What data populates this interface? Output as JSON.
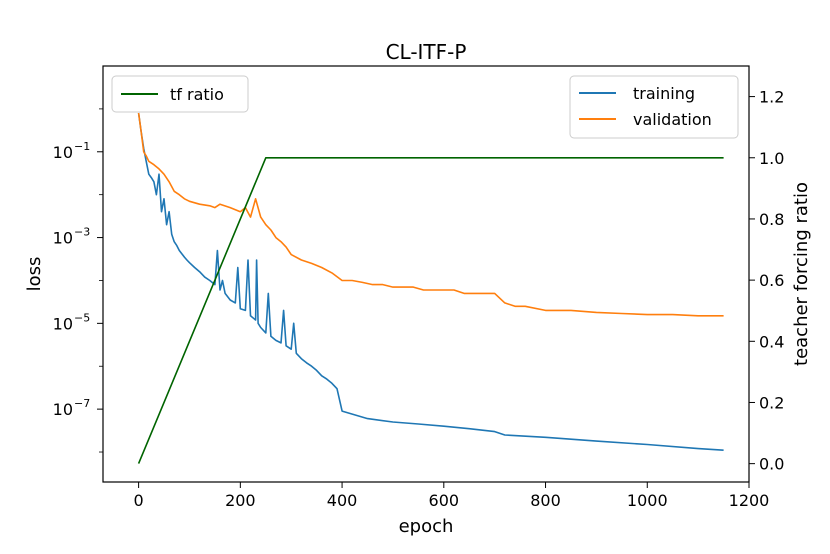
{
  "chart_data": {
    "type": "line",
    "title": "CL-ITF-P",
    "xlabel": "epoch",
    "ylabel": "loss",
    "ylabel_right": "teacher forcing ratio",
    "xlim": [
      -70,
      1200
    ],
    "xticks": [
      0,
      200,
      400,
      600,
      800,
      1000,
      1200
    ],
    "ylim_left": [
      2e-09,
      10
    ],
    "yscale_left": "log",
    "yticks_left": [
      {
        "value": 0.1,
        "base": "10",
        "exp": "−1"
      },
      {
        "value": 0.001,
        "base": "10",
        "exp": "−3"
      },
      {
        "value": 1e-05,
        "base": "10",
        "exp": "−5"
      },
      {
        "value": 1e-07,
        "base": "10",
        "exp": "−7"
      }
    ],
    "ylim_right": [
      -0.06,
      1.3
    ],
    "yticks_right": [
      "0.0",
      "0.2",
      "0.4",
      "0.6",
      "0.8",
      "1.0",
      "1.2"
    ],
    "grid": false,
    "series": [
      {
        "name": "training",
        "axis": "left",
        "color": "#1f77b4",
        "x": [
          0,
          5,
          10,
          15,
          20,
          25,
          30,
          35,
          40,
          45,
          50,
          55,
          60,
          65,
          70,
          75,
          80,
          85,
          90,
          95,
          100,
          110,
          120,
          130,
          140,
          150,
          155,
          160,
          165,
          170,
          180,
          190,
          195,
          200,
          210,
          215,
          220,
          230,
          232,
          235,
          240,
          250,
          255,
          260,
          270,
          280,
          285,
          290,
          300,
          305,
          310,
          320,
          330,
          340,
          350,
          360,
          370,
          380,
          390,
          400,
          450,
          500,
          550,
          600,
          650,
          700,
          720,
          800,
          900,
          1000,
          1100,
          1150
        ],
        "y": [
          0.8,
          0.3,
          0.12,
          0.06,
          0.03,
          0.025,
          0.02,
          0.01,
          0.03,
          0.004,
          0.008,
          0.002,
          0.004,
          0.0012,
          0.0008,
          0.00065,
          0.0005,
          0.00042,
          0.00035,
          0.0003,
          0.00026,
          0.0002,
          0.00016,
          0.00012,
          0.0001,
          8e-05,
          0.0005,
          6e-05,
          0.0001,
          5e-05,
          3.5e-05,
          3e-05,
          0.0002,
          2.2e-05,
          2e-05,
          0.0003,
          1.5e-05,
          1.2e-05,
          0.0003,
          1e-05,
          8e-06,
          6e-06,
          5e-05,
          5e-06,
          4e-06,
          3.5e-06,
          2e-05,
          3e-06,
          2.5e-06,
          1e-05,
          2e-06,
          1.5e-06,
          1.2e-06,
          1e-06,
          8e-07,
          6e-07,
          5e-07,
          4e-07,
          3e-07,
          9e-08,
          6e-08,
          5e-08,
          4.5e-08,
          4e-08,
          3.5e-08,
          3e-08,
          2.5e-08,
          2.2e-08,
          1.8e-08,
          1.5e-08,
          1.2e-08,
          1.1e-08
        ]
      },
      {
        "name": "validation",
        "axis": "left",
        "color": "#ff7f0e",
        "x": [
          0,
          5,
          10,
          15,
          20,
          30,
          40,
          50,
          60,
          70,
          80,
          90,
          100,
          120,
          140,
          150,
          160,
          180,
          200,
          210,
          220,
          230,
          240,
          250,
          260,
          270,
          280,
          290,
          300,
          320,
          340,
          360,
          380,
          400,
          420,
          440,
          460,
          480,
          500,
          520,
          540,
          560,
          580,
          600,
          620,
          640,
          660,
          680,
          700,
          720,
          740,
          760,
          800,
          850,
          900,
          950,
          1000,
          1050,
          1100,
          1150
        ],
        "y": [
          0.8,
          0.3,
          0.1,
          0.08,
          0.06,
          0.05,
          0.04,
          0.03,
          0.02,
          0.012,
          0.01,
          0.008,
          0.007,
          0.006,
          0.0055,
          0.005,
          0.006,
          0.005,
          0.004,
          0.005,
          0.003,
          0.008,
          0.003,
          0.002,
          0.0015,
          0.001,
          0.0008,
          0.0006,
          0.0004,
          0.0003,
          0.00025,
          0.0002,
          0.00015,
          0.0001,
          0.0001,
          9e-05,
          8e-05,
          8e-05,
          7e-05,
          7e-05,
          7e-05,
          6e-05,
          6e-05,
          6e-05,
          6e-05,
          5e-05,
          5e-05,
          5e-05,
          5e-05,
          3e-05,
          2.5e-05,
          2.5e-05,
          2e-05,
          2e-05,
          1.8e-05,
          1.7e-05,
          1.6e-05,
          1.6e-05,
          1.5e-05,
          1.5e-05
        ]
      },
      {
        "name": "tf ratio",
        "axis": "right",
        "color": "#006400",
        "x": [
          0,
          250,
          1150
        ],
        "y": [
          0.0,
          1.0,
          1.0
        ]
      }
    ],
    "legends": [
      {
        "position": "top-left",
        "entries": [
          "tf ratio"
        ]
      },
      {
        "position": "top-right",
        "entries": [
          "training",
          "validation"
        ]
      }
    ]
  }
}
